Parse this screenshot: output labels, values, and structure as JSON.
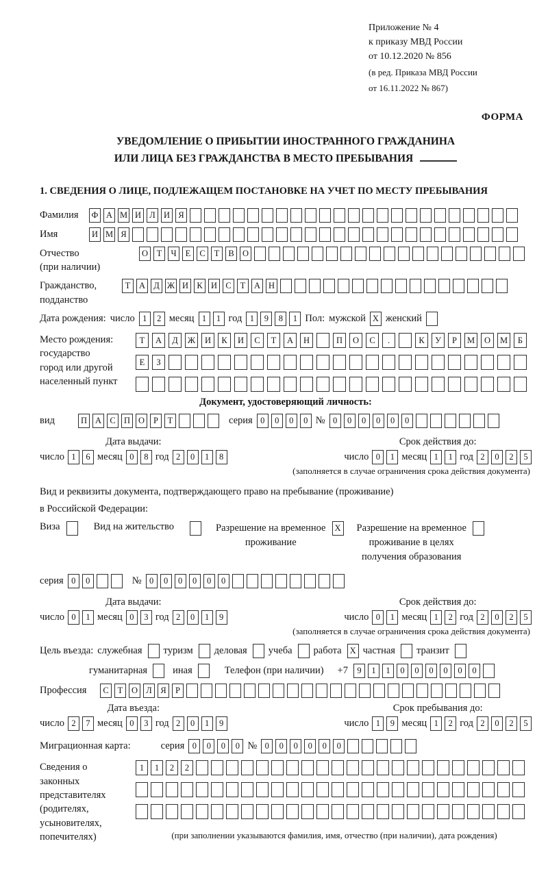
{
  "header": {
    "line1": "Приложение № 4",
    "line2": "к приказу МВД России",
    "line3": "от 10.12.2020 № 856",
    "line4": "(в ред. Приказа МВД России",
    "line5": "от 16.11.2022 № 867)",
    "form_label": "ФОРМА"
  },
  "title": {
    "line1": "УВЕДОМЛЕНИЕ О ПРИБЫТИИ ИНОСТРАННОГО ГРАЖДАНИНА",
    "line2": "ИЛИ ЛИЦА БЕЗ ГРАЖДАНСТВА В МЕСТО ПРЕБЫВАНИЯ"
  },
  "section_heading": "1. СВЕДЕНИЯ О ЛИЦЕ, ПОДЛЕЖАЩЕМ ПОСТАНОВКЕ НА УЧЕТ ПО МЕСТУ ПРЕБЫВАНИЯ",
  "labels": {
    "vid": "вид",
    "seriya": "серия",
    "nomer": "№",
    "chislo": "число",
    "mesyac": "месяц",
    "god": "год",
    "data_vydachi": "Дата выдачи:",
    "srok_deystviya": "Срок действия до:",
    "validity_note": "(заполняется в случае ограничения срока действия документа)"
  },
  "fields": {
    "surname": {
      "label": "Фамилия",
      "value": "ФАМИЛИЯ",
      "cells": 30
    },
    "given_name": {
      "label": "Имя",
      "value": "ИМЯ",
      "cells": 30
    },
    "patronymic": {
      "label": "Отчество",
      "label2": "(при наличии)",
      "value": "ОТЧЕСТВО",
      "cells": 27
    },
    "citizenship": {
      "label": "Гражданство,",
      "label2": "подданство",
      "value": "ТАДЖИКИСТАН",
      "cells": 27
    },
    "birth_date": {
      "label": "Дата рождения:",
      "day": {
        "value": "12",
        "cells": 2
      },
      "month": {
        "value": "11",
        "cells": 2
      },
      "year": {
        "value": "1981",
        "cells": 4
      }
    },
    "sex": {
      "label": "Пол:",
      "male_label": "мужской",
      "male": {
        "value": "X",
        "cells": 1
      },
      "female_label": "женский",
      "female": {
        "value": "",
        "cells": 1
      }
    },
    "birth_place": {
      "label1": "Место рождения:",
      "label2": "государство",
      "label3": "город или другой",
      "label4": "населенный пункт",
      "row1": {
        "value": "ТАДЖИКИСТАН ПОС. КУРМОМБ",
        "cells": 24
      },
      "row2": {
        "value": "ЕЗ",
        "cells": 24
      },
      "row3": {
        "value": "",
        "cells": 24
      }
    },
    "identity_doc": {
      "heading": "Документ, удостоверяющий личность:",
      "type": {
        "value": "ПАСПОРТ",
        "cells": 10
      },
      "series": {
        "value": "0000",
        "cells": 4
      },
      "number": {
        "value": "000000",
        "cells": 12
      },
      "issue": {
        "day": {
          "value": "16",
          "cells": 2
        },
        "month": {
          "value": "08",
          "cells": 2
        },
        "year": {
          "value": "2018",
          "cells": 4
        }
      },
      "valid": {
        "day": {
          "value": "01",
          "cells": 2
        },
        "month": {
          "value": "11",
          "cells": 2
        },
        "year": {
          "value": "2025",
          "cells": 4
        }
      }
    },
    "stay_doc": {
      "line1": "Вид и реквизиты документа, подтверждающего право на пребывание (проживание)",
      "line2": "в Российской Федерации:",
      "visa_label": "Виза",
      "visa": {
        "value": "",
        "cells": 1
      },
      "residence_label": "Вид на жительство",
      "residence": {
        "value": "",
        "cells": 1
      },
      "temp_line1": "Разрешение на временное",
      "temp_line2": "проживание",
      "temp": {
        "value": "X",
        "cells": 1
      },
      "temp_edu_line1": "Разрешение на временное",
      "temp_edu_line2": "проживание в целях",
      "temp_edu_line3": "получения образования",
      "temp_edu": {
        "value": "",
        "cells": 1
      },
      "series": {
        "value": "00",
        "cells": 4
      },
      "number": {
        "value": "000000",
        "cells": 14
      },
      "issue": {
        "day": {
          "value": "01",
          "cells": 2
        },
        "month": {
          "value": "03",
          "cells": 2
        },
        "year": {
          "value": "2019",
          "cells": 4
        }
      },
      "valid": {
        "day": {
          "value": "01",
          "cells": 2
        },
        "month": {
          "value": "12",
          "cells": 2
        },
        "year": {
          "value": "2025",
          "cells": 4
        }
      }
    },
    "purpose": {
      "label": "Цель въезда:",
      "items": [
        {
          "label": "служебная",
          "box": {
            "value": "",
            "cells": 1
          }
        },
        {
          "label": "туризм",
          "box": {
            "value": "",
            "cells": 1
          }
        },
        {
          "label": "деловая",
          "box": {
            "value": "",
            "cells": 1
          }
        },
        {
          "label": "учеба",
          "box": {
            "value": "",
            "cells": 1
          }
        },
        {
          "label": "работа",
          "box": {
            "value": "X",
            "cells": 1
          }
        },
        {
          "label": "частная",
          "box": {
            "value": "",
            "cells": 1
          }
        },
        {
          "label": "транзит",
          "box": {
            "value": "",
            "cells": 1
          }
        },
        {
          "label": "гуманитарная",
          "box": {
            "value": "",
            "cells": 1
          }
        },
        {
          "label": "иная",
          "box": {
            "value": "",
            "cells": 1
          }
        }
      ]
    },
    "phone": {
      "label": "Телефон (при наличии)",
      "prefix": "+7",
      "digits": {
        "value": "911000000",
        "cells": 10
      }
    },
    "profession": {
      "label": "Профессия",
      "value": "СТОЛЯР",
      "cells": 28
    },
    "entry_date": {
      "head": "Дата въезда:",
      "day": {
        "value": "27",
        "cells": 2
      },
      "month": {
        "value": "03",
        "cells": 2
      },
      "year": {
        "value": "2019",
        "cells": 4
      }
    },
    "stay_until": {
      "head": "Срок пребывания до:",
      "day": {
        "value": "19",
        "cells": 2
      },
      "month": {
        "value": "12",
        "cells": 2
      },
      "year": {
        "value": "2025",
        "cells": 4
      }
    },
    "migration_card": {
      "label": "Миграционная карта:",
      "series": {
        "value": "0000",
        "cells": 4
      },
      "number": {
        "value": "000000",
        "cells": 11
      }
    },
    "representatives": {
      "label1": "Сведения о",
      "label2": "законных",
      "label3": "представителях",
      "label4": "(родителях,",
      "label5": "усыновителях,",
      "label6": "попечителях)",
      "row1": {
        "value": "1122",
        "cells": 26
      },
      "row2": {
        "value": "",
        "cells": 26
      },
      "row3": {
        "value": "",
        "cells": 26
      },
      "caption": "(при заполнении указываются фамилия, имя, отчество (при наличии), дата рождения)"
    }
  }
}
